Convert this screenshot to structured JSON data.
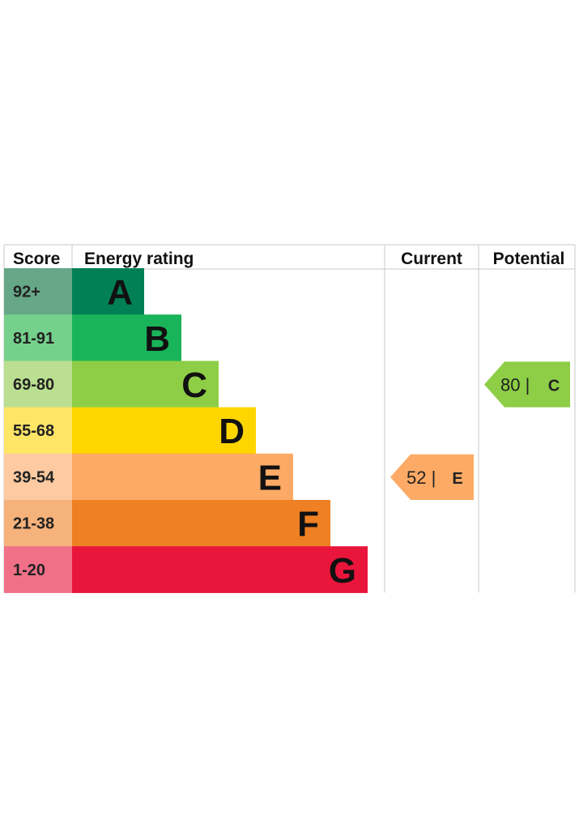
{
  "chart_data": {
    "type": "table",
    "headers": {
      "score": "Score",
      "rating": "Energy rating",
      "current": "Current",
      "potential": "Potential"
    },
    "bands": [
      {
        "score": "92+",
        "letter": "A",
        "color": "#008054",
        "score_bg": "#66a787",
        "letter_color": "#111111"
      },
      {
        "score": "81-91",
        "letter": "B",
        "color": "#19b459",
        "score_bg": "#75d08b",
        "letter_color": "#111111"
      },
      {
        "score": "69-80",
        "letter": "C",
        "color": "#8dce46",
        "score_bg": "#badf91",
        "letter_color": "#111111"
      },
      {
        "score": "55-68",
        "letter": "D",
        "color": "#ffd500",
        "score_bg": "#ffe566",
        "letter_color": "#111111"
      },
      {
        "score": "39-54",
        "letter": "E",
        "color": "#fcaa65",
        "score_bg": "#fdcaa1",
        "letter_color": "#111111"
      },
      {
        "score": "21-38",
        "letter": "F",
        "color": "#ef8023",
        "score_bg": "#f5b27b",
        "letter_color": "#111111"
      },
      {
        "score": "1-20",
        "letter": "G",
        "color": "#e9153b",
        "score_bg": "#f07088",
        "letter_color": "#111111"
      }
    ],
    "current": {
      "value": 52,
      "label": "52 |",
      "letter": "E",
      "color": "#fcaa65"
    },
    "potential": {
      "value": 80,
      "label": "80 |",
      "letter": "C",
      "color": "#8dce46"
    }
  }
}
